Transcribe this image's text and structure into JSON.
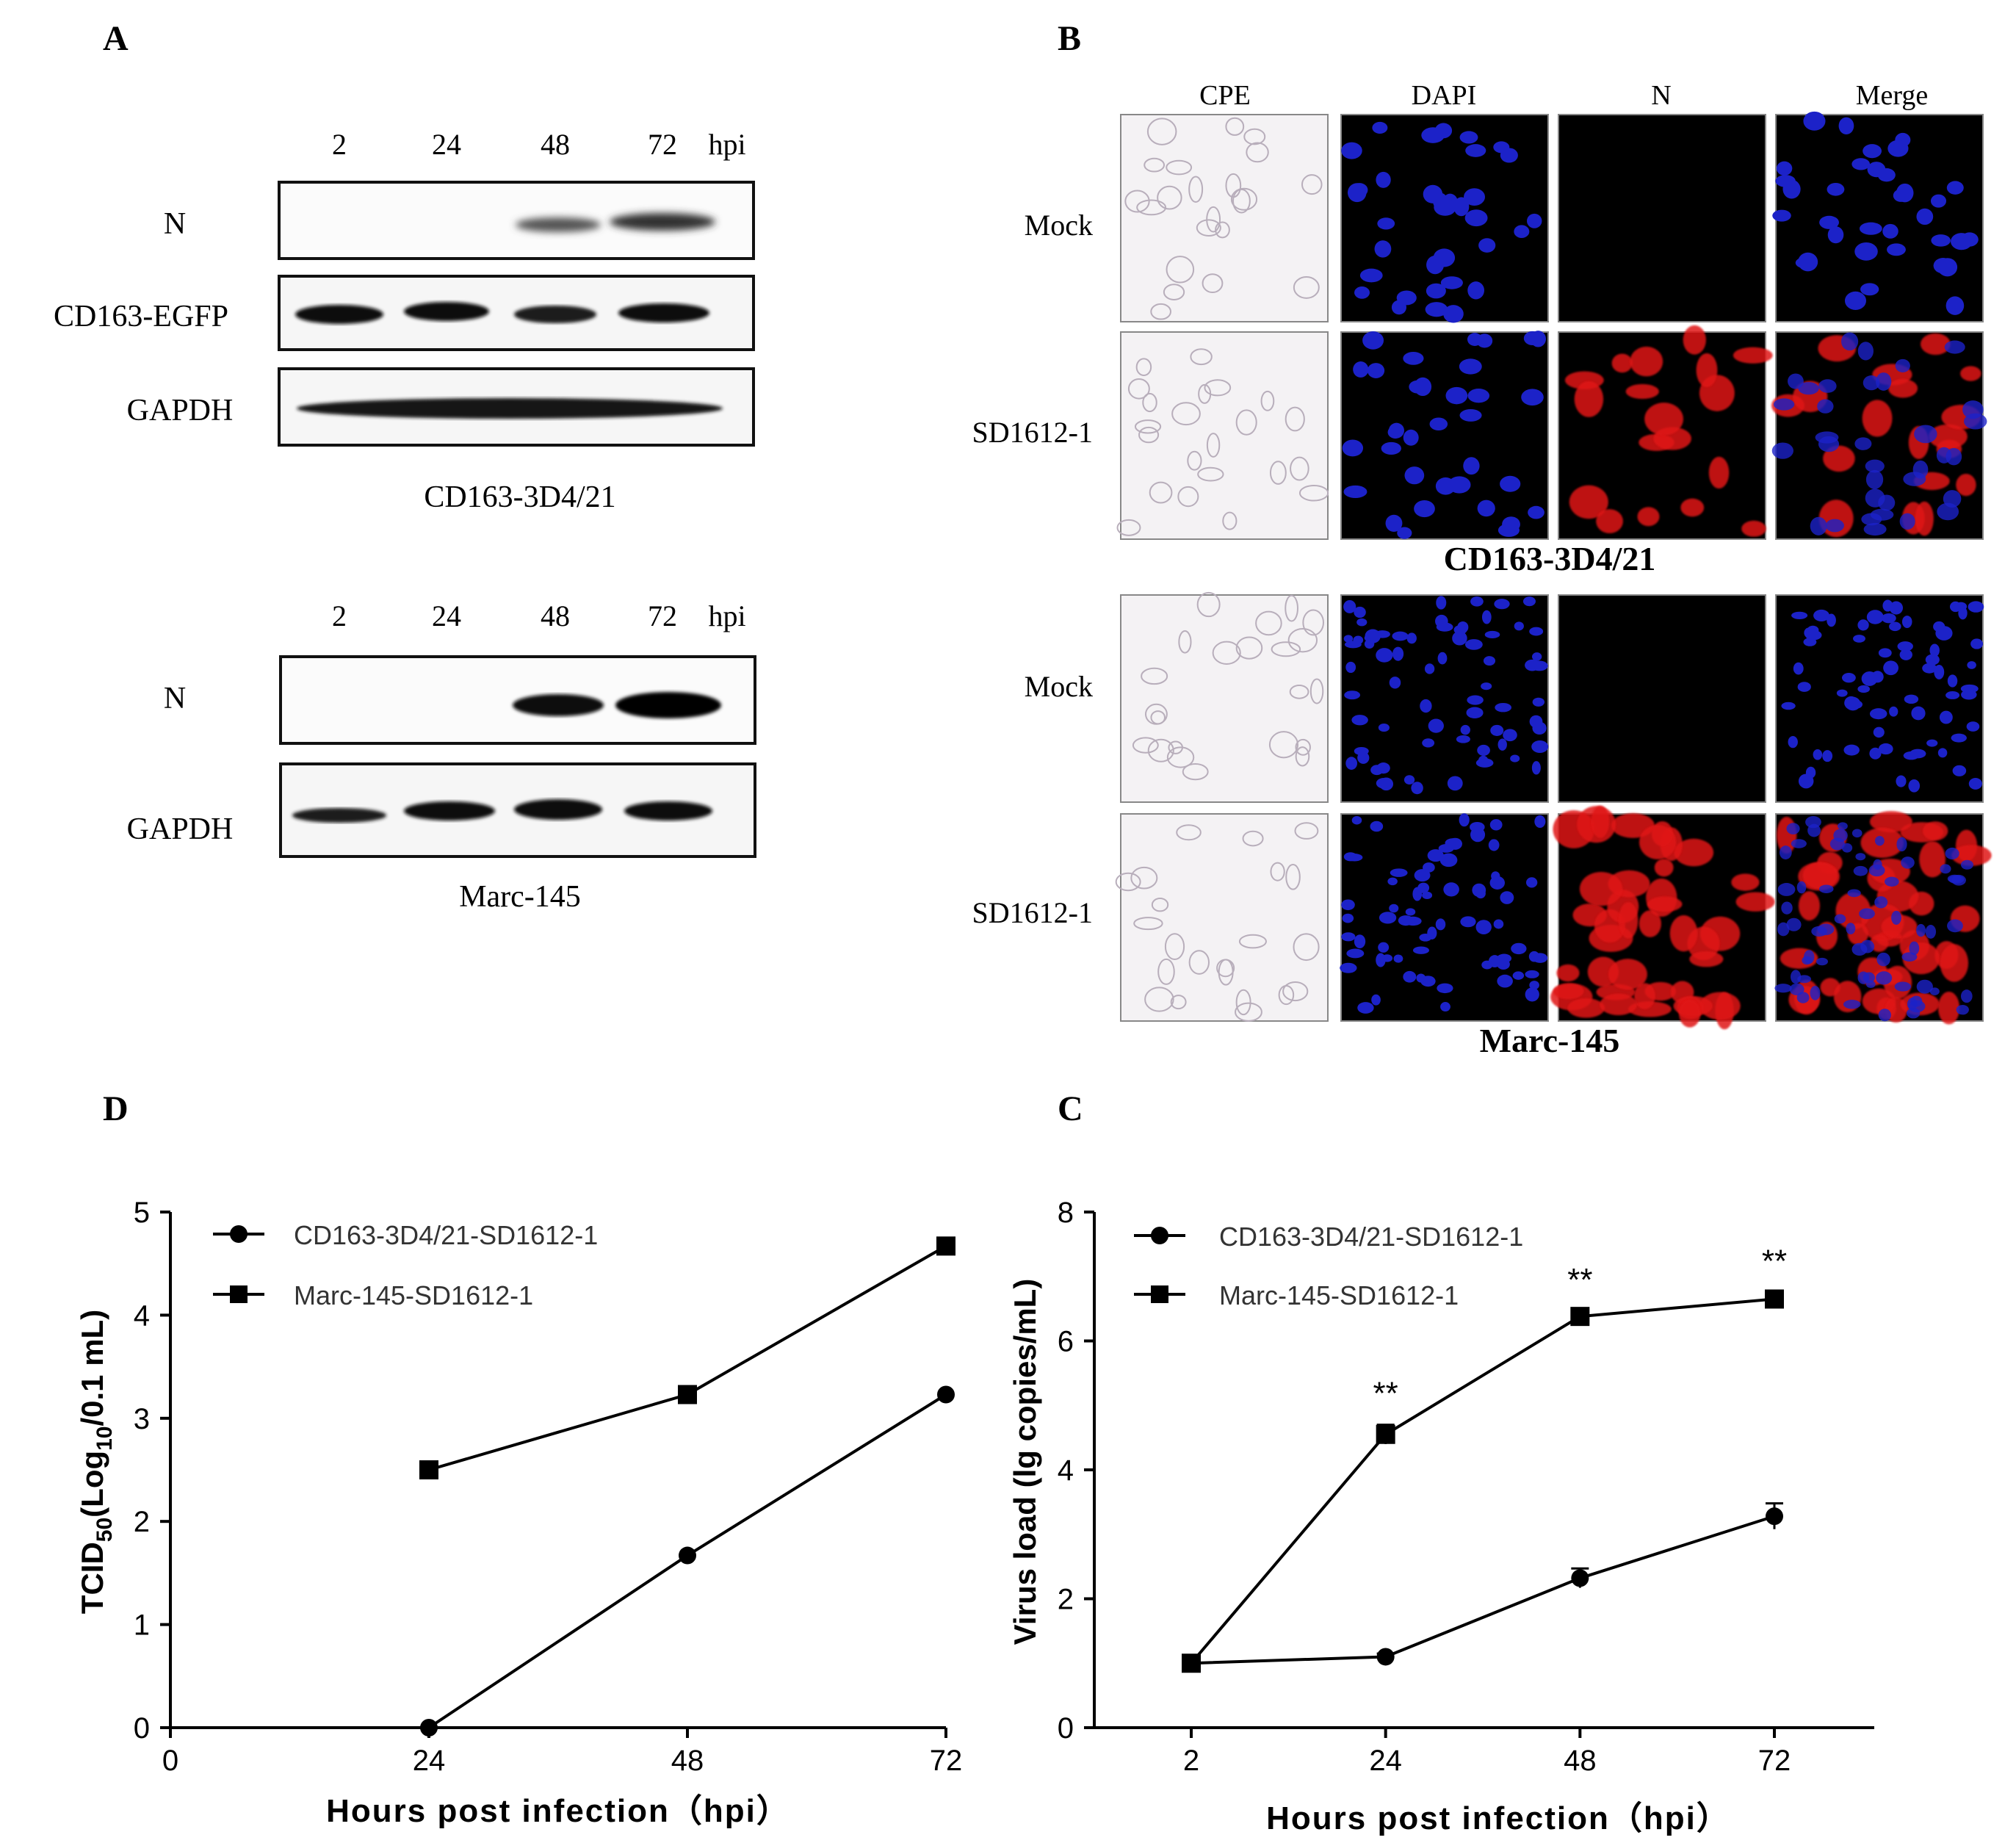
{
  "panel_labels": {
    "a": "A",
    "b": "B",
    "c": "C",
    "d": "D"
  },
  "panel_a": {
    "timepoints": [
      "2",
      "24",
      "48",
      "72",
      "hpi"
    ],
    "blot1_rows": [
      "N",
      "CD163-EGFP",
      "GAPDH"
    ],
    "blot1_caption": "CD163-3D4/21",
    "blot2_rows": [
      "N",
      "GAPDH"
    ],
    "blot2_caption": "Marc-145"
  },
  "panel_b": {
    "columns": [
      "CPE",
      "DAPI",
      "N",
      "Merge"
    ],
    "group1": {
      "rows": [
        "Mock",
        "SD1612-1"
      ],
      "caption": "CD163-3D4/21"
    },
    "group2": {
      "rows": [
        "Mock",
        "SD1612-1"
      ],
      "caption": "Marc-145"
    }
  },
  "colors": {
    "line": "#000000",
    "dapi": "#1c22c8",
    "n_signal": "#e01414",
    "background": "#ffffff"
  },
  "chart_data": [
    {
      "panel": "D",
      "type": "line",
      "xlabel": "Hours post infection（hpi）",
      "ylabel_main": "TCID",
      "ylabel_sub": "50",
      "ylabel_mid": "(Log",
      "ylabel_sub2": "10",
      "ylabel_end": "/0.1 mL)",
      "xlim": [
        0,
        72
      ],
      "ylim": [
        0,
        5
      ],
      "xticks": [
        "0",
        "24",
        "48",
        "72"
      ],
      "xtick_values": [
        0,
        24,
        48,
        72
      ],
      "yticks": [
        "0",
        "1",
        "2",
        "3",
        "4",
        "5"
      ],
      "ytick_values": [
        0,
        1,
        2,
        3,
        4,
        5
      ],
      "series": [
        {
          "name": "CD163-3D4/21-SD1612-1",
          "marker": "circle",
          "x": [
            24,
            48,
            72
          ],
          "y": [
            0,
            1.67,
            3.23
          ]
        },
        {
          "name": "Marc-145-SD1612-1",
          "marker": "square",
          "x": [
            24,
            48,
            72
          ],
          "y": [
            2.5,
            3.23,
            4.67
          ]
        }
      ],
      "legend": "top-left"
    },
    {
      "panel": "C",
      "type": "line",
      "xlabel": "Hours post infection（hpi）",
      "ylabel": "Virus load (lg copies/mL)",
      "xcategories": [
        "2",
        "24",
        "48",
        "72"
      ],
      "ylim": [
        0,
        8
      ],
      "yticks": [
        "0",
        "2",
        "4",
        "6",
        "8"
      ],
      "ytick_values": [
        0,
        2,
        4,
        6,
        8
      ],
      "series": [
        {
          "name": "CD163-3D4/21-SD1612-1",
          "marker": "circle",
          "x": [
            "2",
            "24",
            "48",
            "72"
          ],
          "y": [
            1.0,
            1.1,
            2.32,
            3.28
          ],
          "err": [
            0.05,
            0.05,
            0.15,
            0.2
          ]
        },
        {
          "name": "Marc-145-SD1612-1",
          "marker": "square",
          "x": [
            "2",
            "24",
            "48",
            "72"
          ],
          "y": [
            1.0,
            4.55,
            6.38,
            6.65
          ],
          "err": [
            0.05,
            0.15,
            0.08,
            0.1
          ]
        }
      ],
      "significance": [
        "",
        "**",
        "**",
        "**"
      ],
      "legend": "top-left"
    }
  ]
}
